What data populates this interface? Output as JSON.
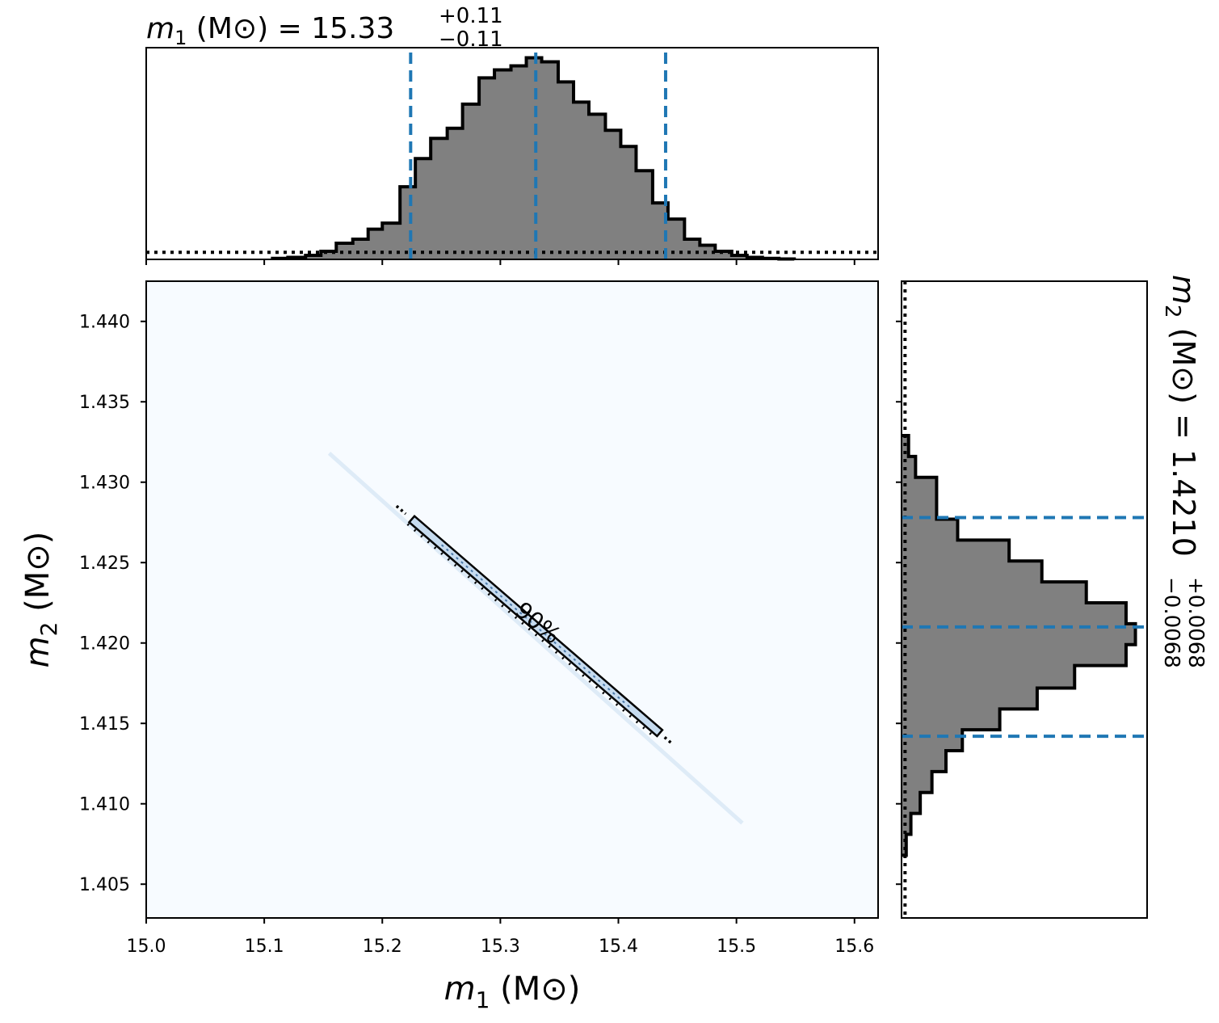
{
  "chart_data": [
    {
      "type": "histogram",
      "panel": "top-marginal",
      "title": {
        "var": "m",
        "sub": "1",
        "unit": " (M",
        "unit_sym": "⊙",
        "eq": ") = 15.33",
        "plus": "+0.11",
        "minus": "−0.11"
      },
      "xlim": [
        15.0,
        15.62
      ],
      "ylim": [
        0,
        1.05
      ],
      "median": 15.33,
      "lower": 15.224,
      "upper": 15.44,
      "reference_level": 0.035,
      "bin_edges": [
        15.107,
        15.12,
        15.135,
        15.148,
        15.161,
        15.175,
        15.188,
        15.2,
        15.215,
        15.228,
        15.241,
        15.255,
        15.268,
        15.282,
        15.295,
        15.309,
        15.322,
        15.335,
        15.349,
        15.362,
        15.375,
        15.389,
        15.402,
        15.415,
        15.429,
        15.442,
        15.456,
        15.469,
        15.482,
        15.496,
        15.509,
        15.522,
        15.536,
        15.549
      ],
      "density": [
        0.005,
        0.01,
        0.02,
        0.04,
        0.08,
        0.1,
        0.15,
        0.18,
        0.36,
        0.5,
        0.6,
        0.65,
        0.77,
        0.9,
        0.94,
        0.96,
        1.0,
        0.98,
        0.88,
        0.78,
        0.72,
        0.64,
        0.56,
        0.44,
        0.28,
        0.2,
        0.1,
        0.07,
        0.04,
        0.02,
        0.01,
        0.005,
        0.002
      ]
    },
    {
      "type": "heatmap",
      "panel": "joint",
      "x_var": "m",
      "x_sub": "1",
      "x_unit": " (M",
      "x_sym": "⊙",
      "x_close": ")",
      "y_var": "m",
      "y_sub": "2",
      "y_unit": " (M",
      "y_sym": "⊙",
      "y_close": ")",
      "xlim": [
        15.0,
        15.62
      ],
      "ylim": [
        1.4029,
        1.4425
      ],
      "xticks": [
        15.0,
        15.1,
        15.2,
        15.3,
        15.4,
        15.5,
        15.6
      ],
      "xtick_labels": [
        "15.0",
        "15.1",
        "15.2",
        "15.3",
        "15.4",
        "15.5",
        "15.6"
      ],
      "yticks": [
        1.405,
        1.41,
        1.415,
        1.42,
        1.425,
        1.43,
        1.435,
        1.44
      ],
      "ytick_labels": [
        "1.405",
        "1.410",
        "1.415",
        "1.420",
        "1.425",
        "1.430",
        "1.435",
        "1.440"
      ],
      "contour_label": "90%",
      "degeneracy_line": {
        "x": [
          15.155,
          15.505
        ],
        "y": [
          1.4318,
          1.4088
        ]
      },
      "contour_line": {
        "x": [
          15.225,
          15.435
        ],
        "y": [
          1.4277,
          1.4144
        ]
      },
      "colors": {
        "background": "#f7fbff",
        "density": "#c6dbef",
        "contour": "#000000"
      }
    },
    {
      "type": "histogram",
      "panel": "right-marginal",
      "orientation": "horizontal",
      "title": {
        "var": "m",
        "sub": "2",
        "unit": " (M",
        "unit_sym": "⊙",
        "eq": ") = 1.4210",
        "plus": "+0.0068",
        "minus": "−0.0068"
      },
      "ylim": [
        1.4029,
        1.4425
      ],
      "xlim": [
        0,
        1.05
      ],
      "median": 1.421,
      "lower": 1.4142,
      "upper": 1.4278,
      "reference_level": 0.015,
      "bin_edges": [
        1.4068,
        1.4081,
        1.4094,
        1.4107,
        1.412,
        1.4133,
        1.4146,
        1.4159,
        1.4172,
        1.4186,
        1.4199,
        1.4212,
        1.4225,
        1.4238,
        1.4251,
        1.4264,
        1.4277,
        1.429,
        1.4303,
        1.4316,
        1.4329
      ],
      "density": [
        0.02,
        0.04,
        0.08,
        0.13,
        0.19,
        0.26,
        0.42,
        0.58,
        0.74,
        0.96,
        1.0,
        0.96,
        0.79,
        0.6,
        0.46,
        0.24,
        0.15,
        0.15,
        0.06,
        0.03
      ],
      "colors": {
        "fill": "#808080",
        "edge": "#000000",
        "quantile": "#1f77b4"
      }
    }
  ]
}
